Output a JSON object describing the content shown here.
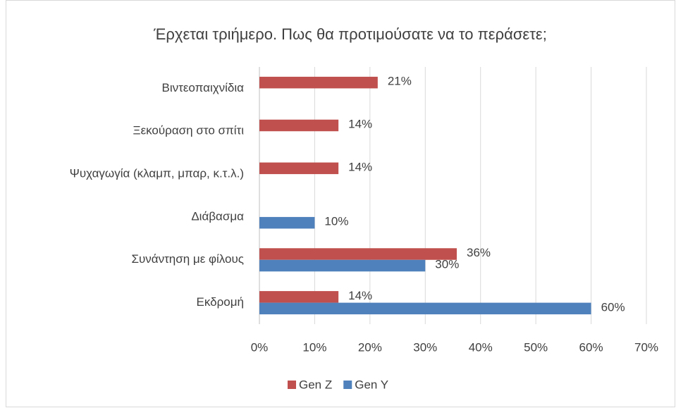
{
  "chart_data": {
    "type": "hbar",
    "title": "Έρχεται τριήμερο. Πως θα προτιμούσατε να το περάσετε;",
    "categories": [
      "Βιντεοπαιχνίδια",
      "Ξεκούραση στο σπίτι",
      "Ψυχαγωγία (κλαμπ, μπαρ, κ.τ.λ.)",
      "Διάβασμα",
      "Συνάντηση με φίλους",
      "Εκδρομή"
    ],
    "series": [
      {
        "name": "Gen Z",
        "color": "#c0504d",
        "values": [
          21.4,
          14.3,
          14.3,
          null,
          35.7,
          14.3
        ],
        "value_labels": [
          "21%",
          "14%",
          "14%",
          null,
          "36%",
          "14%"
        ]
      },
      {
        "name": "Gen Y",
        "color": "#4f81bd",
        "values": [
          null,
          null,
          null,
          10,
          30,
          60
        ],
        "value_labels": [
          null,
          null,
          null,
          "10%",
          "30%",
          "60%"
        ]
      }
    ],
    "xlim": [
      0,
      70
    ],
    "xticks": [
      {
        "value": 0,
        "label": "0%"
      },
      {
        "value": 10,
        "label": "10%"
      },
      {
        "value": 20,
        "label": "20%"
      },
      {
        "value": 30,
        "label": "30%"
      },
      {
        "value": 40,
        "label": "40%"
      },
      {
        "value": 50,
        "label": "50%"
      },
      {
        "value": 60,
        "label": "60%"
      },
      {
        "value": 70,
        "label": "70%"
      }
    ],
    "grid": true,
    "legend": "bottom"
  }
}
